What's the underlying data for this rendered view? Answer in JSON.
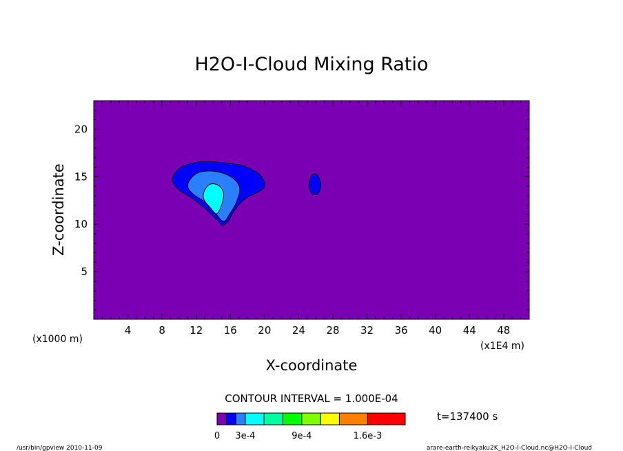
{
  "chart_data": {
    "type": "contour",
    "title": "H2O-I-Cloud Mixing Ratio",
    "xlabel": "X-coordinate",
    "ylabel": "Z-coordinate",
    "x_unit": "(x1E4 m)",
    "y_unit": "(x1000 m)",
    "xlim": [
      0,
      51
    ],
    "ylim": [
      0,
      23
    ],
    "x_ticks": [
      4,
      8,
      12,
      16,
      20,
      24,
      28,
      32,
      36,
      40,
      44,
      48
    ],
    "y_ticks": [
      5,
      10,
      15,
      20
    ],
    "contour_interval": "CONTOUR INTERVAL = 1.000E-04",
    "time_label": "t=137400 s",
    "colorbar": {
      "labels": [
        "0",
        "3e-4",
        "9e-4",
        "1.6e-3"
      ],
      "colors": [
        "#7b00b4",
        "#0000ff",
        "#2a7fff",
        "#00ffff",
        "#00ff9f",
        "#00ff00",
        "#7fff00",
        "#ffff00",
        "#ff7f00",
        "#ff0000",
        "#ff9f9f"
      ],
      "levels": [
        0,
        0.0001,
        0.0002,
        0.0003,
        0.0005,
        0.0007,
        0.0009,
        0.0011,
        0.0013,
        0.0016,
        0.002
      ]
    },
    "regions": [
      {
        "level": 0.0001,
        "color": "#0000ff",
        "points": [
          [
            9.2,
            14.6
          ],
          [
            9.8,
            15.7
          ],
          [
            11,
            16.3
          ],
          [
            12.8,
            16.6
          ],
          [
            15,
            16.5
          ],
          [
            17.3,
            16.2
          ],
          [
            19.2,
            15.4
          ],
          [
            20,
            14.4
          ],
          [
            19.8,
            13.7
          ],
          [
            18.8,
            13.2
          ],
          [
            17.6,
            12.6
          ],
          [
            16.5,
            11.5
          ],
          [
            15.8,
            10.4
          ],
          [
            15.1,
            9.9
          ],
          [
            14.5,
            10.4
          ],
          [
            13,
            11.7
          ],
          [
            11.4,
            12.8
          ],
          [
            10,
            13.6
          ]
        ]
      },
      {
        "level": 0.0002,
        "color": "#2a7fff",
        "points": [
          [
            11,
            14.1
          ],
          [
            11.8,
            15.2
          ],
          [
            13.2,
            15.6
          ],
          [
            15,
            15.4
          ],
          [
            16.5,
            14.7
          ],
          [
            17.1,
            13.7
          ],
          [
            16.7,
            12.3
          ],
          [
            16,
            11.2
          ],
          [
            15.2,
            10.3
          ],
          [
            14.2,
            11.2
          ],
          [
            13.1,
            12.3
          ],
          [
            11.6,
            13.2
          ]
        ]
      },
      {
        "level": 0.0003,
        "color": "#00ffff",
        "points": [
          [
            12.9,
            13.4
          ],
          [
            13.6,
            14.2
          ],
          [
            14.6,
            14.1
          ],
          [
            15.2,
            13.3
          ],
          [
            15,
            12.1
          ],
          [
            14.4,
            11.1
          ],
          [
            13.6,
            11.8
          ],
          [
            12.9,
            12.6
          ]
        ]
      },
      {
        "level": 0.0001,
        "color": "#0000ff",
        "points": [
          [
            25.2,
            14.2
          ],
          [
            25.5,
            15.1
          ],
          [
            25.9,
            15.3
          ],
          [
            26.3,
            15
          ],
          [
            26.6,
            14.1
          ],
          [
            26.3,
            13.3
          ],
          [
            25.9,
            13.1
          ],
          [
            25.4,
            13.4
          ]
        ]
      }
    ]
  },
  "footer": {
    "left": "/usr/bin/gpview   2010-11-09",
    "right": "arare-earth-reikyaku2K_H2O-I-Cloud.nc@H2O-I-Cloud"
  }
}
